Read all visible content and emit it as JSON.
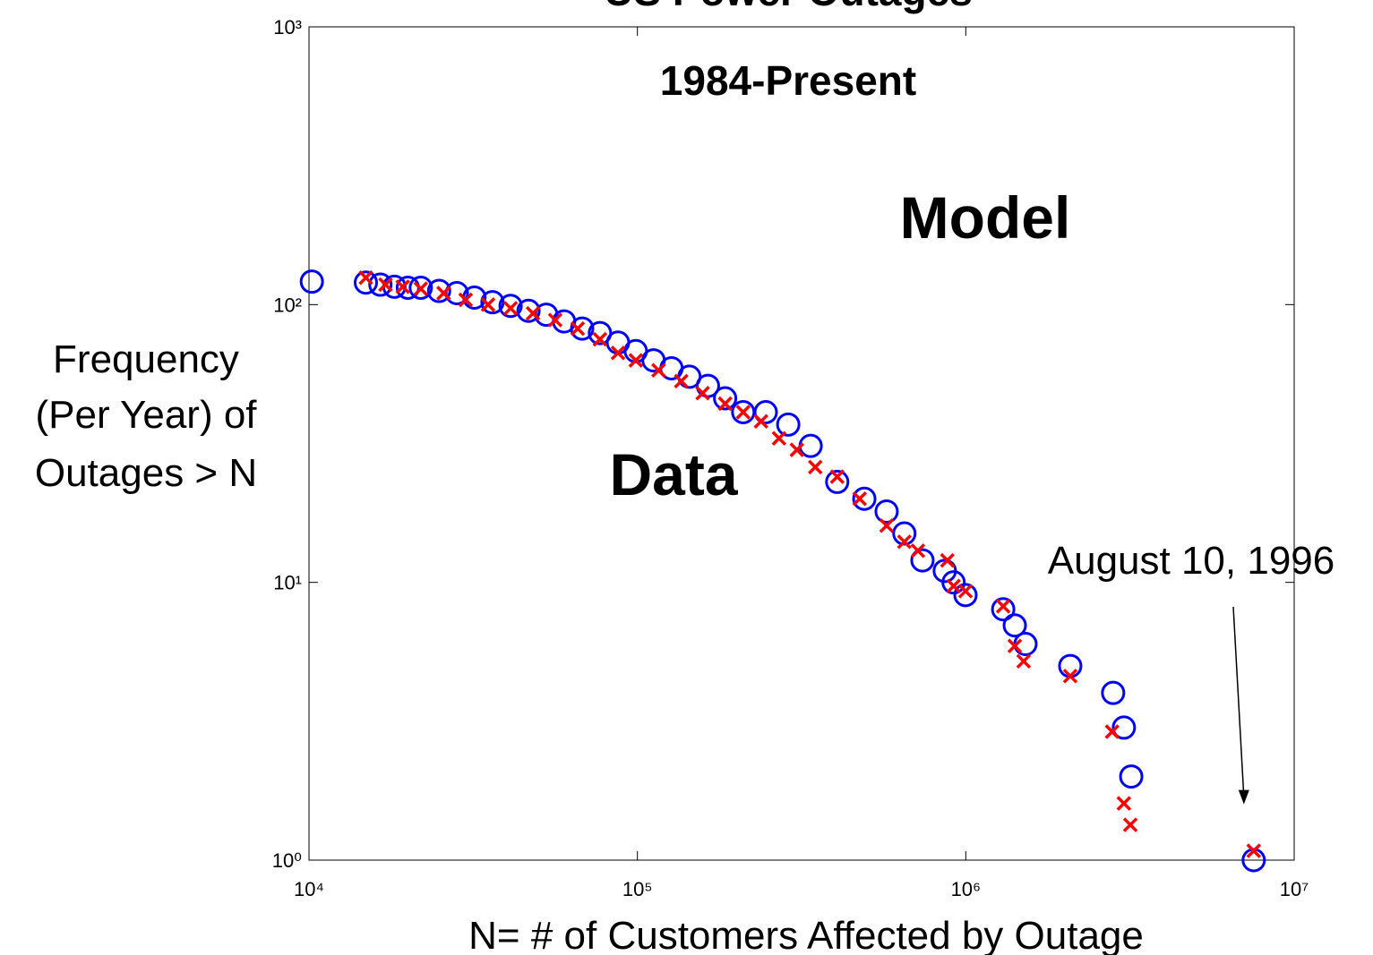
{
  "chart_data": {
    "type": "scatter",
    "title": "US Power Outages",
    "subtitle": "1984-Present",
    "xlabel": "N= # of Customers Affected by Outage",
    "ylabel": [
      "Frequency",
      "(Per Year) of",
      "Outages > N"
    ],
    "xscale": "log",
    "yscale": "log",
    "xlim": [
      10000,
      10000000
    ],
    "ylim": [
      1,
      1000
    ],
    "xticks": [
      {
        "value": 10000,
        "label": "10⁴"
      },
      {
        "value": 100000,
        "label": "10⁵"
      },
      {
        "value": 1000000,
        "label": "10⁶"
      },
      {
        "value": 10000000,
        "label": "10⁷"
      }
    ],
    "yticks": [
      {
        "value": 1,
        "label": "10⁰"
      },
      {
        "value": 10,
        "label": "10¹"
      },
      {
        "value": 100,
        "label": "10²"
      },
      {
        "value": 1000,
        "label": "10³"
      }
    ],
    "series": [
      {
        "name": "Data",
        "color": "#0000ff",
        "label_color": "#ffbb33",
        "marker": "o",
        "x": [
          10200,
          14900,
          16500,
          18200,
          20000,
          21900,
          24900,
          28200,
          31900,
          36200,
          41100,
          46600,
          52800,
          59800,
          67900,
          76900,
          87300,
          98900,
          112000,
          127000,
          144000,
          164000,
          185000,
          210000,
          246000,
          288000,
          337000,
          406000,
          491000,
          574000,
          650000,
          738000,
          863000,
          918000,
          998000,
          1300000,
          1410000,
          1520000,
          2080000,
          2810000,
          3030000,
          3190000,
          7530000
        ],
        "values": [
          121,
          120,
          118,
          116,
          115,
          115,
          112,
          110,
          106,
          102,
          99,
          95,
          92,
          87,
          82,
          79,
          73,
          68,
          63,
          59,
          55,
          51,
          46,
          41,
          41,
          37,
          31,
          23,
          20,
          18,
          15,
          12,
          11,
          10,
          9,
          8,
          7,
          6,
          5,
          4,
          3,
          2,
          1
        ]
      },
      {
        "name": "Model",
        "color": "#ff0000",
        "label_color": "#cc0000",
        "marker": "x",
        "x": [
          14900,
          17100,
          19300,
          21900,
          25700,
          30000,
          35100,
          41100,
          48100,
          56200,
          65800,
          76900,
          87300,
          98900,
          116000,
          136000,
          158000,
          185000,
          210000,
          238000,
          270000,
          306000,
          348000,
          406000,
          475000,
          574000,
          650000,
          715000,
          879000,
          918000,
          998000,
          1300000,
          1410000,
          1500000,
          2080000,
          2790000,
          3030000,
          3170000,
          7530000
        ],
        "values": [
          125,
          118,
          116,
          114,
          110,
          104,
          100,
          97,
          93,
          88,
          82,
          75,
          67,
          63,
          58,
          53,
          48,
          44,
          41,
          38,
          33,
          30,
          26,
          24,
          20,
          16,
          14,
          13,
          12,
          9.7,
          9.3,
          8.2,
          5.9,
          5.2,
          4.6,
          2.9,
          1.6,
          1.34,
          1.08
        ]
      }
    ],
    "annotations": [
      {
        "text": "August 10, 1996",
        "x": 7530000,
        "y": 1.08
      }
    ]
  }
}
